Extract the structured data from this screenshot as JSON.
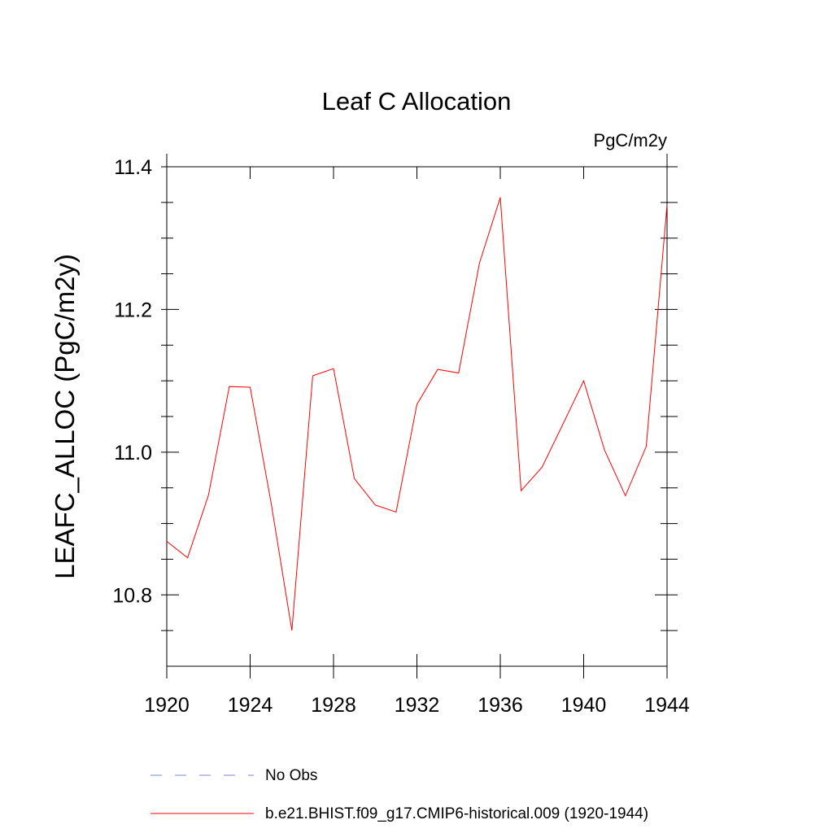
{
  "chart_data": {
    "type": "line",
    "title": "Leaf C Allocation",
    "units_label": "PgC/m2y",
    "ylabel": "LEAFC_ALLOC  (PgC/m2y)",
    "xlabel": "",
    "xlim": [
      1920,
      1944
    ],
    "ylim": [
      10.7,
      11.4
    ],
    "x_ticks": [
      1920,
      1924,
      1928,
      1932,
      1936,
      1940,
      1944
    ],
    "x_tick_labels": [
      "1920",
      "1924",
      "1928",
      "1932",
      "1936",
      "1940",
      "1944"
    ],
    "y_ticks": [
      10.8,
      11.0,
      11.2,
      11.4
    ],
    "y_tick_labels": [
      "10.8",
      "11.0",
      "11.2",
      "11.4"
    ],
    "grid": false,
    "legend_placement": "bottom",
    "series": [
      {
        "name": "b.e21.BHIST.f09_g17.CMIP6-historical.009 (1920-1944)",
        "color": "#ff0000",
        "style": "solid",
        "x": [
          1920,
          1921,
          1922,
          1923,
          1924,
          1925,
          1926,
          1927,
          1928,
          1929,
          1930,
          1931,
          1932,
          1933,
          1934,
          1935,
          1936,
          1937,
          1938,
          1939,
          1940,
          1941,
          1942,
          1943,
          1944
        ],
        "y": [
          10.875,
          10.852,
          10.94,
          11.092,
          11.091,
          10.93,
          10.75,
          11.107,
          11.117,
          10.963,
          10.926,
          10.916,
          11.067,
          11.116,
          11.111,
          11.265,
          11.357,
          10.946,
          10.979,
          11.039,
          11.1,
          11.003,
          10.939,
          11.008,
          11.347
        ]
      }
    ],
    "legend": [
      {
        "label": "No Obs",
        "color": "#7f7fd9",
        "style": "dashed"
      },
      {
        "label": "b.e21.BHIST.f09_g17.CMIP6-historical.009 (1920-1944)",
        "color": "#ff0000",
        "style": "solid"
      }
    ]
  }
}
